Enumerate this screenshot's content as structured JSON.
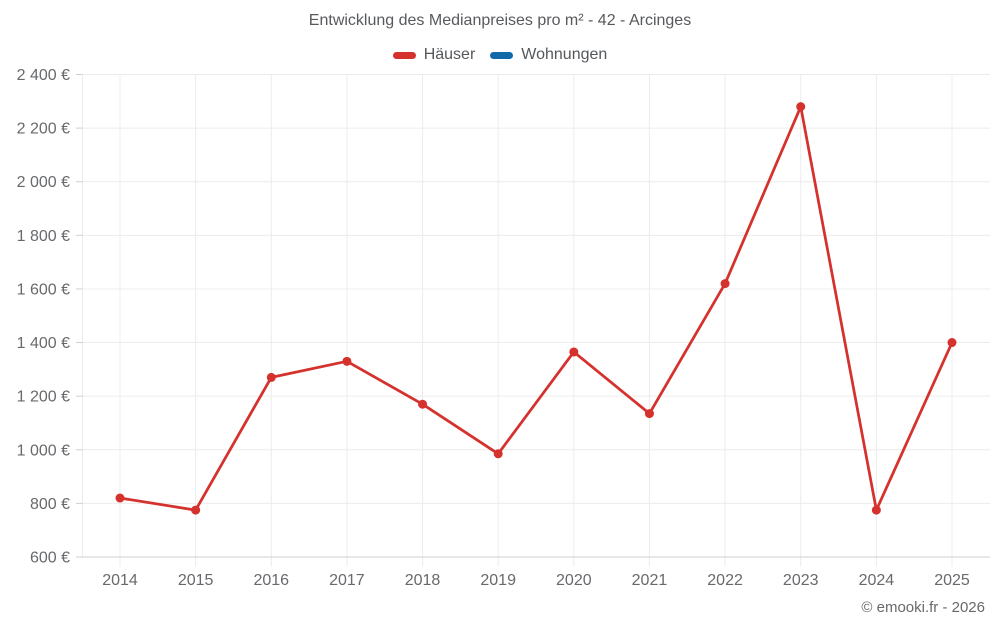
{
  "title": "Entwicklung des Medianpreises pro m² - 42 - Arcinges",
  "legend": {
    "items": [
      {
        "label": "Häuser",
        "color": "#d5312d"
      },
      {
        "label": "Wohnungen",
        "color": "#1169a8"
      }
    ]
  },
  "footer": "© emooki.fr - 2026",
  "chart_data": {
    "type": "line",
    "title": "Entwicklung des Medianpreises pro m² - 42 - Arcinges",
    "categories": [
      "2014",
      "2015",
      "2016",
      "2017",
      "2018",
      "2019",
      "2020",
      "2021",
      "2022",
      "2023",
      "2024",
      "2025"
    ],
    "series": [
      {
        "name": "Häuser",
        "color": "#d5312d",
        "values": [
          820,
          775,
          1270,
          1330,
          1170,
          985,
          1365,
          1135,
          1620,
          2280,
          775,
          1400
        ]
      },
      {
        "name": "Wohnungen",
        "color": "#1169a8",
        "values": []
      }
    ],
    "xlabel": "",
    "ylabel": "",
    "ylim": [
      600,
      2400
    ],
    "ytick_values": [
      600,
      800,
      1000,
      1200,
      1400,
      1600,
      1800,
      2000,
      2200,
      2400
    ],
    "ytick_labels": [
      "600 €",
      "800 €",
      "1 000 €",
      "1 200 €",
      "1 400 €",
      "1 600 €",
      "1 800 €",
      "2 000 €",
      "2 200 €",
      "2 400 €"
    ],
    "grid": true,
    "legend_position": "top",
    "unit": "€"
  },
  "colors": {
    "grid": "#ececec",
    "axis": "#cfcfcf",
    "axis_text": "#67696c",
    "title_text": "#57595c",
    "background": "#ffffff"
  }
}
